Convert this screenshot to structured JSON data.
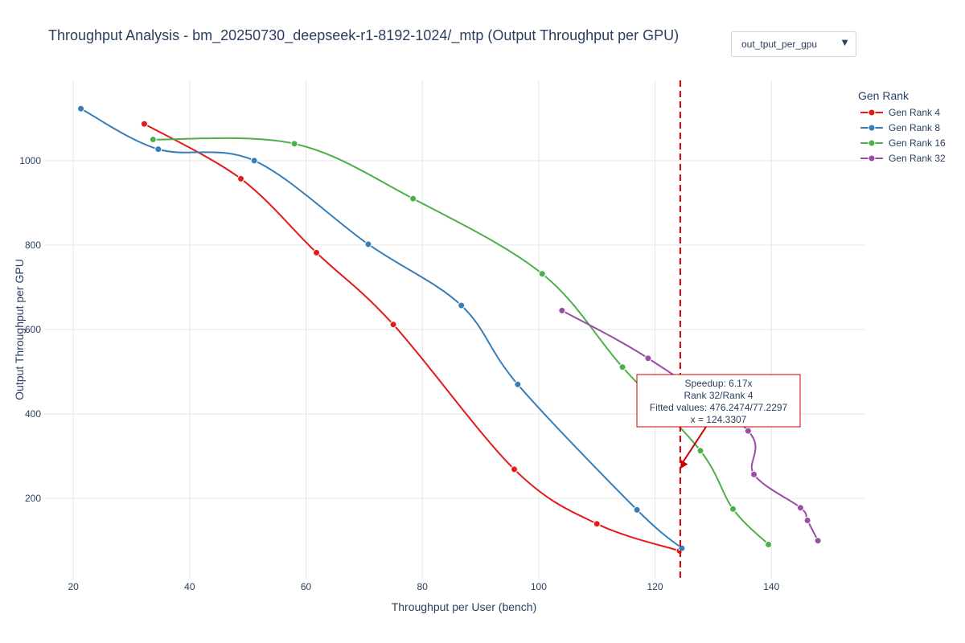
{
  "dropdown": {
    "selected": "out_tput_per_gpu"
  },
  "colors": {
    "gen_rank_4": "#e41a1c",
    "gen_rank_8": "#377eb8",
    "gen_rank_16": "#4daf4a",
    "gen_rank_32": "#984ea3",
    "annotation": "#cc0000",
    "grid": "#e5e5e5",
    "text": "#2a3f5f"
  },
  "chart_data": {
    "type": "line",
    "title": "Throughput Analysis - bm_20250730_deepseek-r1-8192-1024/_mtp (Output Throughput per GPU)",
    "xlabel": "Throughput per User (bench)",
    "ylabel": "Output Throughput per GPU",
    "xlim": [
      15,
      156
    ],
    "ylim": [
      10,
      1190
    ],
    "xticks": [
      20,
      40,
      60,
      80,
      100,
      120,
      140
    ],
    "yticks": [
      200,
      400,
      600,
      800,
      1000
    ],
    "grid": true,
    "legend_title": "Gen Rank",
    "legend_position": "top-right",
    "series": [
      {
        "name": "Gen Rank 4",
        "x": [
          32.2,
          48.8,
          61.8,
          75.0,
          95.8,
          110.0,
          124.2
        ],
        "y": [
          1087,
          957,
          782,
          612,
          269,
          140,
          76
        ]
      },
      {
        "name": "Gen Rank 8",
        "x": [
          21.3,
          34.6,
          51.1,
          70.7,
          86.7,
          96.4,
          116.9,
          124.6
        ],
        "y": [
          1123,
          1027,
          1000,
          802,
          657,
          470,
          173,
          82
        ]
      },
      {
        "name": "Gen Rank 16",
        "x": [
          33.7,
          58.0,
          78.4,
          100.6,
          114.4,
          127.8,
          133.4,
          139.5
        ],
        "y": [
          1050,
          1040,
          910,
          732,
          511,
          313,
          175,
          91
        ]
      },
      {
        "name": "Gen Rank 32",
        "x": [
          104.0,
          118.8,
          136.0,
          137.0,
          145.0,
          146.2,
          148.0
        ],
        "y": [
          645,
          532,
          360,
          257,
          178,
          148,
          100
        ]
      }
    ],
    "vline": {
      "x": 124.3307,
      "style": "dashed"
    },
    "annotation": {
      "lines": [
        "Speedup: 6.17x",
        "Rank 32/Rank 4",
        "Fitted values: 476.2474/77.2297",
        "x = 124.3307"
      ],
      "arrow_to": {
        "x": 124.3307,
        "y": 270
      }
    }
  }
}
